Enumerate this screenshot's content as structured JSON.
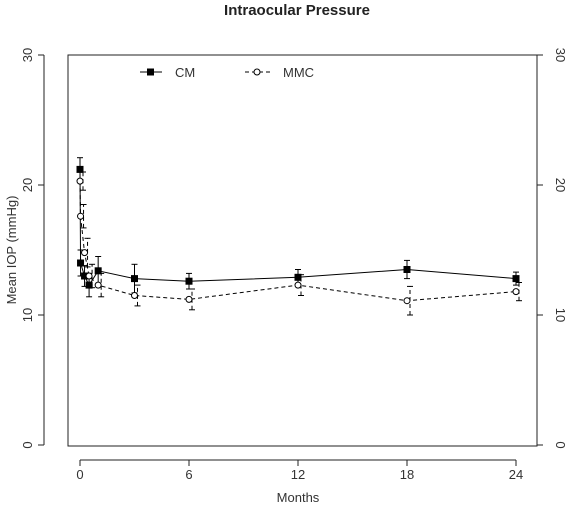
{
  "chart_data": {
    "type": "line",
    "title": "Intraocular Pressure",
    "xlabel": "Months",
    "ylabel": "Mean IOP (mmHg)",
    "x_ticks": [
      0,
      6,
      12,
      18,
      24
    ],
    "x_tick_labels": [
      "0",
      "6",
      "12",
      "18",
      "24"
    ],
    "y_ticks": [
      0,
      10,
      20,
      30
    ],
    "y_tick_labels": [
      "0",
      "10",
      "20",
      "30"
    ],
    "right_y_tick_labels": [
      "0",
      "10",
      "20",
      "30"
    ],
    "xlim": [
      0,
      24
    ],
    "ylim": [
      0,
      30
    ],
    "grid": false,
    "legend_position": "top-left",
    "series": [
      {
        "name": "CM",
        "line_style": "solid",
        "marker": "filled-square",
        "color": "#000000",
        "points": [
          {
            "x": 0,
            "y": 21.2,
            "lo": 20.3,
            "hi": 22.1
          },
          {
            "x": 0.03,
            "y": 14.0,
            "lo": 13.0,
            "hi": 15.0
          },
          {
            "x": 0.25,
            "y": 13.0,
            "lo": 12.2,
            "hi": 13.8
          },
          {
            "x": 0.5,
            "y": 12.3,
            "lo": 11.4,
            "hi": 13.2
          },
          {
            "x": 1,
            "y": 13.4,
            "lo": 12.3,
            "hi": 14.5
          },
          {
            "x": 3,
            "y": 12.8,
            "lo": 11.7,
            "hi": 13.9
          },
          {
            "x": 6,
            "y": 12.6,
            "lo": 12.0,
            "hi": 13.2
          },
          {
            "x": 12,
            "y": 12.9,
            "lo": 12.3,
            "hi": 13.5
          },
          {
            "x": 18,
            "y": 13.5,
            "lo": 12.8,
            "hi": 14.2
          },
          {
            "x": 24,
            "y": 12.8,
            "lo": 12.3,
            "hi": 13.3
          }
        ]
      },
      {
        "name": "MMC",
        "line_style": "dashed",
        "marker": "open-circle",
        "color": "#000000",
        "points": [
          {
            "x": 0,
            "y": 20.3,
            "lo": 19.6,
            "hi": 21.0
          },
          {
            "x": 0.03,
            "y": 17.6,
            "lo": 16.7,
            "hi": 18.5
          },
          {
            "x": 0.25,
            "y": 14.8,
            "lo": 13.7,
            "hi": 15.9
          },
          {
            "x": 0.5,
            "y": 13.0,
            "lo": 12.1,
            "hi": 13.9
          },
          {
            "x": 1,
            "y": 12.3,
            "lo": 11.4,
            "hi": 13.2
          },
          {
            "x": 3,
            "y": 11.5,
            "lo": 10.7,
            "hi": 12.3
          },
          {
            "x": 6,
            "y": 11.2,
            "lo": 10.4,
            "hi": 12.0
          },
          {
            "x": 12,
            "y": 12.3,
            "lo": 11.5,
            "hi": 13.1
          },
          {
            "x": 18,
            "y": 11.1,
            "lo": 10.0,
            "hi": 12.2
          },
          {
            "x": 24,
            "y": 11.8,
            "lo": 11.1,
            "hi": 12.5
          }
        ]
      }
    ]
  }
}
